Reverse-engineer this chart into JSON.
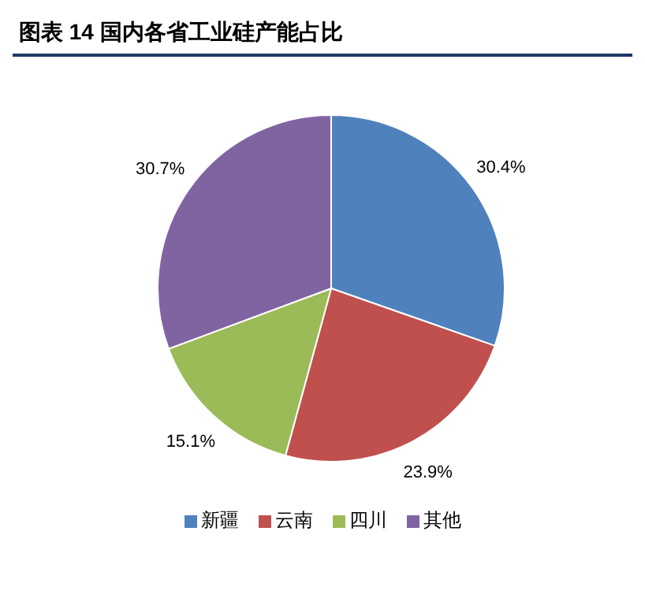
{
  "chart_data": {
    "type": "pie",
    "title": "图表 14 国内各省工业硅产能占比",
    "categories": [
      "新疆",
      "云南",
      "四川",
      "其他"
    ],
    "values": [
      30.4,
      23.9,
      15.1,
      30.7
    ],
    "value_labels": [
      "30.4%",
      "23.9%",
      "15.1%",
      "30.7%"
    ],
    "colors": [
      "#4f81bd",
      "#c0504d",
      "#9bbb59",
      "#8064a2"
    ],
    "legend": "bottom"
  }
}
